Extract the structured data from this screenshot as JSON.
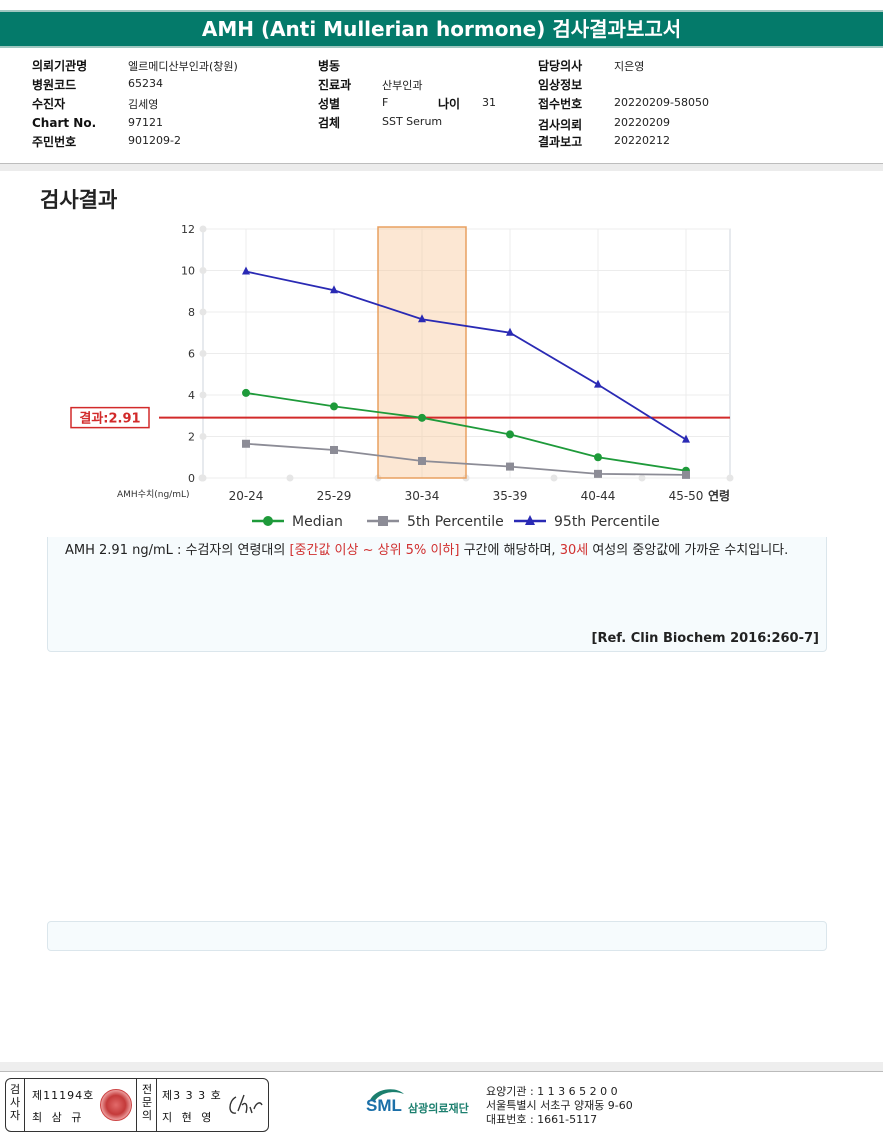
{
  "title": "AMH (Anti Mullerian hormone) 검사결과보고서",
  "info": {
    "col1": [
      {
        "label": "의뢰기관명",
        "value": "엘르메디산부인과(창원)"
      },
      {
        "label": "병원코드",
        "value": "65234"
      },
      {
        "label": "수진자",
        "value": "김세영"
      },
      {
        "label": "Chart No.",
        "value": "97121"
      },
      {
        "label": "주민번호",
        "value": "901209-2"
      }
    ],
    "col2": [
      {
        "label": "병동",
        "value": ""
      },
      {
        "label": "진료과",
        "value": "산부인과"
      },
      {
        "label": "성별",
        "value": "F"
      },
      {
        "label": "검체",
        "value": "SST Serum"
      }
    ],
    "age_label": "나이",
    "age_value": "31",
    "col3": [
      {
        "label": "담당의사",
        "value": "지은영"
      },
      {
        "label": "임상정보",
        "value": ""
      },
      {
        "label": "접수번호",
        "value": "20220209-58050"
      },
      {
        "label": "검사의뢰",
        "value": "20220209"
      },
      {
        "label": "결과보고",
        "value": "20220212"
      }
    ]
  },
  "section_title": "검사결과",
  "chart_data": {
    "type": "line",
    "categories": [
      "20-24",
      "25-29",
      "30-34",
      "35-39",
      "40-44",
      "45-50"
    ],
    "x_axis_suffix": "연령",
    "ylabel": "AMH수치(ng/mL)",
    "ylim": [
      0,
      12
    ],
    "yticks": [
      "0",
      "2",
      "4",
      "6",
      "8",
      "10",
      "12"
    ],
    "highlight_category": "30-34",
    "highlight_color": "#f9c99e",
    "result_value": 2.91,
    "result_label": "결과:2.91",
    "result_color": "#d22a2a",
    "series": [
      {
        "name": "Median",
        "color": "#1e9a3a",
        "marker": "circle",
        "values": [
          4.1,
          3.45,
          2.9,
          2.1,
          1.0,
          0.35
        ]
      },
      {
        "name": "5th Percentile",
        "color": "#8c8c96",
        "marker": "square",
        "values": [
          1.65,
          1.35,
          0.82,
          0.55,
          0.2,
          0.15
        ]
      },
      {
        "name": "95th Percentile",
        "color": "#2a2ab4",
        "marker": "triangle",
        "values": [
          9.95,
          9.05,
          7.65,
          7.0,
          4.5,
          1.85
        ]
      }
    ]
  },
  "comment": {
    "part1": "AMH  2.91 ng/mL : 수검자의 연령대의 ",
    "red1": "[중간값 이상 ~ 상위 5% 이하]",
    "part2": "  구간에 해당하며, ",
    "red2": "30세",
    "part3": " 여성의 중앙값에 가까운 수치입니다."
  },
  "reference": "[Ref. Clin Biochem 2016:260-7]",
  "footer": {
    "inspector_label": "검사자",
    "inspector_no": "제11194호",
    "inspector_name": "최 삼 규",
    "doctor_label": "전문의",
    "doctor_no": "제3 3 3 호",
    "doctor_name": "지 현 영",
    "org_logo": "SML",
    "org_name": "삼광의료재단",
    "org_code": "요양기관 : 1 1 3 6 5 2 0 0",
    "org_address": "서울특별시 서초구 양재동 9-60",
    "org_phone": "대표번호 : 1661-5117"
  }
}
